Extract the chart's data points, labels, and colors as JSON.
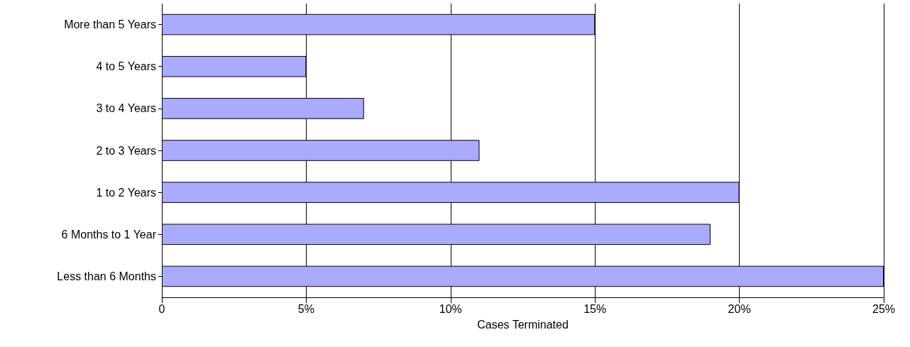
{
  "chart_data": {
    "type": "bar",
    "orientation": "horizontal",
    "xlabel": "Cases Terminated",
    "categories": [
      "More than 5 Years",
      "4 to 5 Years",
      "3 to 4 Years",
      "2 to 3 Years",
      "1 to 2 Years",
      "6 Months to 1 Year",
      "Less than 6 Months"
    ],
    "values": [
      15,
      5,
      7,
      11,
      20,
      19,
      25
    ],
    "color": "#aaaaff",
    "xlim": [
      0,
      25
    ],
    "xticks": [
      0,
      {
        "value": 5,
        "label": "5%"
      },
      {
        "value": 10,
        "label": "10%"
      },
      {
        "value": 15,
        "label": "15%"
      },
      {
        "value": 20,
        "label": "20%"
      },
      {
        "value": 25,
        "label": "25%"
      }
    ],
    "grid": "x"
  }
}
